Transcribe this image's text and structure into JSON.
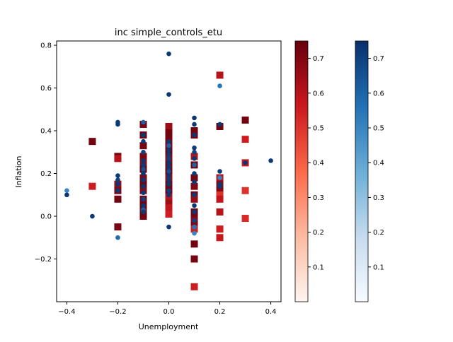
{
  "chart_data": {
    "type": "scatter",
    "title": "inc simple_controls_etu",
    "xlabel": "Unemployment",
    "ylabel": "Inflation",
    "xlim": [
      -0.44,
      0.44
    ],
    "ylim": [
      -0.4,
      0.82
    ],
    "xticks": [
      "−0.4",
      "−0.2",
      "0.0",
      "0.2",
      "0.4"
    ],
    "xtick_values": [
      -0.4,
      -0.2,
      0.0,
      0.2,
      0.4
    ],
    "yticks": [
      "−0.2",
      "0.0",
      "0.2",
      "0.4",
      "0.6",
      "0.8"
    ],
    "ytick_values": [
      -0.2,
      0.0,
      0.2,
      0.4,
      0.6,
      0.8
    ],
    "grid": false,
    "series": [
      {
        "marker": "square",
        "colormap": "Reds",
        "color_range": [
          0.0,
          0.75
        ],
        "points": [
          [
            -0.3,
            0.35,
            0.73
          ],
          [
            -0.3,
            0.14,
            0.55
          ],
          [
            -0.2,
            0.28,
            0.73
          ],
          [
            -0.2,
            0.27,
            0.6
          ],
          [
            -0.2,
            0.15,
            0.65
          ],
          [
            -0.2,
            0.12,
            0.7
          ],
          [
            -0.2,
            0.08,
            0.73
          ],
          [
            -0.2,
            -0.05,
            0.72
          ],
          [
            -0.1,
            0.43,
            0.72
          ],
          [
            -0.1,
            0.38,
            0.73
          ],
          [
            -0.1,
            0.33,
            0.72
          ],
          [
            -0.1,
            0.28,
            0.7
          ],
          [
            -0.1,
            0.25,
            0.66
          ],
          [
            -0.1,
            0.22,
            0.73
          ],
          [
            -0.1,
            0.18,
            0.7
          ],
          [
            -0.1,
            0.15,
            0.73
          ],
          [
            -0.1,
            0.12,
            0.68
          ],
          [
            -0.1,
            0.08,
            0.72
          ],
          [
            -0.1,
            0.05,
            0.73
          ],
          [
            -0.1,
            0.02,
            0.7
          ],
          [
            -0.1,
            0.0,
            0.73
          ],
          [
            0.0,
            0.42,
            0.65
          ],
          [
            0.0,
            0.39,
            0.73
          ],
          [
            0.0,
            0.36,
            0.72
          ],
          [
            0.0,
            0.33,
            0.7
          ],
          [
            0.0,
            0.3,
            0.73
          ],
          [
            0.0,
            0.27,
            0.68
          ],
          [
            0.0,
            0.24,
            0.72
          ],
          [
            0.0,
            0.21,
            0.73
          ],
          [
            0.0,
            0.18,
            0.66
          ],
          [
            0.0,
            0.15,
            0.72
          ],
          [
            0.0,
            0.12,
            0.73
          ],
          [
            0.0,
            0.09,
            0.6
          ],
          [
            0.0,
            0.06,
            0.65
          ],
          [
            0.0,
            0.04,
            0.58
          ],
          [
            0.0,
            0.01,
            0.55
          ],
          [
            0.1,
            0.4,
            0.73
          ],
          [
            0.1,
            0.38,
            0.72
          ],
          [
            0.1,
            0.28,
            0.6
          ],
          [
            0.1,
            0.24,
            0.73
          ],
          [
            0.1,
            0.18,
            0.72
          ],
          [
            0.1,
            0.14,
            0.7
          ],
          [
            0.1,
            0.1,
            0.73
          ],
          [
            0.1,
            0.08,
            0.66
          ],
          [
            0.1,
            0.02,
            0.73
          ],
          [
            0.1,
            0.0,
            0.72
          ],
          [
            0.1,
            -0.02,
            0.68
          ],
          [
            0.1,
            -0.04,
            0.7
          ],
          [
            0.1,
            -0.06,
            0.55
          ],
          [
            0.1,
            -0.13,
            0.73
          ],
          [
            0.1,
            -0.2,
            0.72
          ],
          [
            0.1,
            -0.33,
            0.55
          ],
          [
            0.2,
            0.66,
            0.6
          ],
          [
            0.2,
            0.42,
            0.73
          ],
          [
            0.2,
            0.18,
            0.6
          ],
          [
            0.2,
            0.15,
            0.68
          ],
          [
            0.2,
            0.12,
            0.7
          ],
          [
            0.2,
            0.1,
            0.5
          ],
          [
            0.2,
            0.08,
            0.58
          ],
          [
            0.2,
            0.02,
            0.6
          ],
          [
            0.2,
            -0.06,
            0.55
          ],
          [
            0.2,
            -0.1,
            0.57
          ],
          [
            0.3,
            0.45,
            0.73
          ],
          [
            0.3,
            0.36,
            0.55
          ],
          [
            0.3,
            0.25,
            0.57
          ],
          [
            0.3,
            0.12,
            0.5
          ],
          [
            0.3,
            -0.01,
            0.52
          ]
        ]
      },
      {
        "marker": "circle",
        "colormap": "Blues",
        "color_range": [
          0.0,
          0.75
        ],
        "points": [
          [
            -0.4,
            0.12,
            0.5
          ],
          [
            -0.4,
            0.1,
            0.73
          ],
          [
            -0.3,
            0.0,
            0.73
          ],
          [
            -0.2,
            0.44,
            0.72
          ],
          [
            -0.2,
            0.43,
            0.73
          ],
          [
            -0.2,
            0.19,
            0.72
          ],
          [
            -0.2,
            0.17,
            0.7
          ],
          [
            -0.2,
            0.15,
            0.73
          ],
          [
            -0.2,
            0.12,
            0.72
          ],
          [
            -0.2,
            -0.1,
            0.58
          ],
          [
            -0.1,
            0.44,
            0.6
          ],
          [
            -0.1,
            0.38,
            0.73
          ],
          [
            -0.1,
            0.35,
            0.72
          ],
          [
            -0.1,
            0.3,
            0.7
          ],
          [
            -0.1,
            0.26,
            0.73
          ],
          [
            -0.1,
            0.24,
            0.72
          ],
          [
            -0.1,
            0.22,
            0.66
          ],
          [
            -0.1,
            0.2,
            0.73
          ],
          [
            -0.1,
            0.17,
            0.72
          ],
          [
            -0.1,
            0.14,
            0.73
          ],
          [
            -0.1,
            0.11,
            0.72
          ],
          [
            -0.1,
            0.08,
            0.7
          ],
          [
            -0.1,
            0.05,
            0.73
          ],
          [
            -0.1,
            0.03,
            0.6
          ],
          [
            -0.1,
            0.02,
            0.72
          ],
          [
            0.0,
            0.76,
            0.72
          ],
          [
            0.0,
            0.57,
            0.73
          ],
          [
            0.0,
            0.35,
            0.72
          ],
          [
            0.0,
            0.33,
            0.6
          ],
          [
            0.0,
            0.31,
            0.73
          ],
          [
            0.0,
            0.29,
            0.72
          ],
          [
            0.0,
            0.27,
            0.7
          ],
          [
            0.0,
            0.25,
            0.73
          ],
          [
            0.0,
            0.23,
            0.72
          ],
          [
            0.0,
            0.21,
            0.66
          ],
          [
            0.0,
            0.19,
            0.73
          ],
          [
            0.0,
            0.17,
            0.72
          ],
          [
            0.0,
            0.15,
            0.73
          ],
          [
            0.0,
            0.12,
            0.7
          ],
          [
            0.0,
            0.1,
            0.72
          ],
          [
            0.0,
            -0.05,
            0.72
          ],
          [
            0.1,
            0.46,
            0.73
          ],
          [
            0.1,
            0.43,
            0.72
          ],
          [
            0.1,
            0.38,
            0.73
          ],
          [
            0.1,
            0.32,
            0.72
          ],
          [
            0.1,
            0.3,
            0.7
          ],
          [
            0.1,
            0.27,
            0.73
          ],
          [
            0.1,
            0.24,
            0.6
          ],
          [
            0.1,
            0.2,
            0.72
          ],
          [
            0.1,
            0.16,
            0.73
          ],
          [
            0.1,
            0.1,
            0.72
          ],
          [
            0.1,
            0.05,
            0.73
          ],
          [
            0.1,
            0.02,
            0.72
          ],
          [
            0.1,
            -0.02,
            0.7
          ],
          [
            0.1,
            -0.05,
            0.55
          ],
          [
            0.1,
            -0.08,
            0.5
          ],
          [
            0.2,
            0.61,
            0.55
          ],
          [
            0.2,
            0.43,
            0.73
          ],
          [
            0.2,
            0.21,
            0.72
          ],
          [
            0.2,
            0.18,
            0.5
          ],
          [
            0.2,
            0.15,
            0.73
          ],
          [
            0.2,
            0.14,
            0.72
          ],
          [
            0.3,
            0.25,
            0.73
          ],
          [
            0.4,
            0.26,
            0.72
          ]
        ]
      }
    ],
    "colorbars": [
      {
        "colormap": "Reds",
        "range": [
          0.0,
          0.75
        ],
        "ticks": [
          "0.1",
          "0.2",
          "0.3",
          "0.4",
          "0.5",
          "0.6",
          "0.7"
        ],
        "tick_values": [
          0.1,
          0.2,
          0.3,
          0.4,
          0.5,
          0.6,
          0.7
        ]
      },
      {
        "colormap": "Blues",
        "range": [
          0.0,
          0.75
        ],
        "ticks": [
          "0.1",
          "0.2",
          "0.3",
          "0.4",
          "0.5",
          "0.6",
          "0.7"
        ],
        "tick_values": [
          0.1,
          0.2,
          0.3,
          0.4,
          0.5,
          0.6,
          0.7
        ]
      }
    ]
  }
}
